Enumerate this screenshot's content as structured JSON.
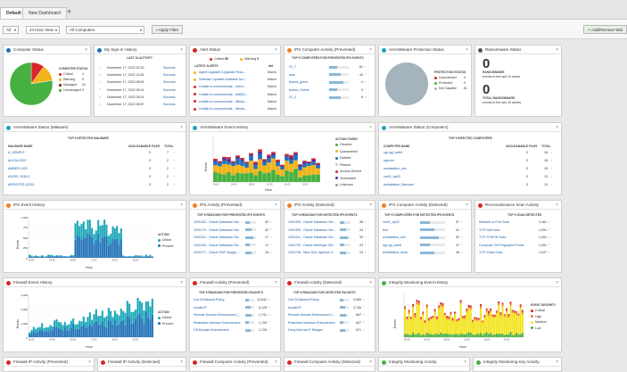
{
  "tabs": {
    "default": "Default",
    "new": "New Dashboard",
    "add": "+"
  },
  "toolbar": {
    "scope": "All",
    "range": "24 Hour View",
    "computers": "All Computers",
    "apply": "Apply Filter",
    "add_widget": "Add/Remove Wid"
  },
  "colors": {
    "critical": "#d9262a",
    "warning": "#f2b318",
    "managed": "#7a1414",
    "unmanaged": "#5bb34a",
    "ok": "#46b041",
    "teal": "#1aa7b8",
    "blue": "#2070b8"
  },
  "computer_status": {
    "title": "Computer Status",
    "label": "COMPUTER STATUS",
    "items": [
      {
        "name": "Critical",
        "value": "4"
      },
      {
        "name": "Warning",
        "value": "5"
      },
      {
        "name": "Managed",
        "value": "31"
      },
      {
        "name": "Unmanaged",
        "value": "0"
      }
    ],
    "pie": [
      4,
      5,
      31
    ]
  },
  "signin": {
    "title": "My Sign-in History",
    "label": "LAST 10 ACTIVITY",
    "rows": [
      {
        "date": "November 17, 2022 22:33",
        "status": "Success"
      },
      {
        "date": "November 17, 2022 11:06",
        "status": "Success"
      },
      {
        "date": "November 17, 2022 08:54",
        "status": "Success"
      },
      {
        "date": "November 17, 2022 05:14",
        "status": "Success"
      },
      {
        "date": "November 17, 2022 05:01",
        "status": "Success"
      },
      {
        "date": "November 17, 2022 05:57",
        "status": "Success"
      }
    ]
  },
  "alert_status": {
    "title": "Alert Status",
    "critical_label": "Critical",
    "critical_value": "80",
    "warning_label": "Warning",
    "warning_value": "0",
    "latest_label": "LATEST ALERTS",
    "col": "dat",
    "rows": [
      {
        "text": "Agent Upgrade (Upgrade Reco...",
        "when": "March"
      },
      {
        "text": "Software Updates Available for I...",
        "when": "March"
      },
      {
        "text": "Unable to communicate - direct...",
        "when": "March"
      },
      {
        "text": "Unable to communicate - fo6001...",
        "when": "March"
      },
      {
        "text": "Unable to communicate - Windo...",
        "when": "March"
      },
      {
        "text": "Unable to communicate - Windo...",
        "when": "March"
      }
    ]
  },
  "ips_activity_prevented": {
    "title": "IPS Computer Activity (Prevented)",
    "label": "TOP 5 COMPUTERS FOR PREVENTED IPS EVENTS",
    "rows": [
      {
        "name": "01_7",
        "value": "81"
      },
      {
        "name": "auto",
        "value": "44"
      },
      {
        "name": "fedora_green",
        "value": "4"
      },
      {
        "name": "fedora_Online",
        "value": "9"
      },
      {
        "name": "01_2",
        "value": "8"
      }
    ]
  },
  "amp_status": {
    "title": "Anti-Malware Protection Status",
    "label": "PROTECTION STATUS",
    "items": [
      {
        "name": "Unprotected",
        "value": "0"
      },
      {
        "name": "Protected",
        "value": "0"
      },
      {
        "name": "Not Capable",
        "value": "61"
      }
    ],
    "pie": [
      0,
      0,
      61
    ]
  },
  "ransomware": {
    "title": "Ransomware Status",
    "big1": "0",
    "label1": "RANSOMWARE",
    "text1": "events in the last 24 hours",
    "big2": "0",
    "label2": "TOTAL RANSOMWARE",
    "text2": "events in the last 15 weeks"
  },
  "am_malware": {
    "title": "Anti-Malware Status (Malware)",
    "label": "TOP 5 DETECTED MALWARE",
    "cols": [
      "MALWARE NAME",
      "UNCLEANABLE FILES",
      "TOTAL"
    ],
    "rows": [
      {
        "name": "A_NSWR.E",
        "unc": "0",
        "total": "7"
      },
      {
        "name": "ALICIA.2022",
        "unc": "0",
        "total": "2"
      },
      {
        "name": "AMBER.1422",
        "unc": "0",
        "total": "2"
      },
      {
        "name": "ANGEL.1036.3",
        "unc": "0",
        "total": "2"
      },
      {
        "name": "ARRIOTES.12320",
        "unc": "0",
        "total": "2"
      }
    ]
  },
  "am_event_history": {
    "title": "Anti-Malware Event History",
    "ylabel": "Events",
    "xlabel": "Hour",
    "legend_title": "ACTION TAKEN",
    "legend": [
      {
        "name": "Cleaned",
        "color": "#46b041"
      },
      {
        "name": "Quarantined",
        "color": "#f2b318"
      },
      {
        "name": "Deleted",
        "color": "#2070b8"
      },
      {
        "name": "Passed",
        "color": "#cccccc"
      },
      {
        "name": "Access Denied",
        "color": "#d9262a"
      },
      {
        "name": "Terminated",
        "color": "#5a2d8a"
      },
      {
        "name": "Unknown",
        "color": "#9a9a9a"
      }
    ]
  },
  "am_computers": {
    "title": "Anti-Malware Status (Computers)",
    "label": "TOP 5 INFECTED COMPUTERS",
    "cols": [
      "COMPUTER NAME",
      "UNCLEANABLE FILES",
      "TOTAL"
    ],
    "rows": [
      {
        "name": "ngi.ngi_ludhil",
        "unc": "0",
        "total": "16"
      },
      {
        "name": "ngicom",
        "unc": "0",
        "total": "18"
      },
      {
        "name": "workstation_win",
        "unc": "0",
        "total": "15"
      },
      {
        "name": "vm01_ap02",
        "unc": "0",
        "total": "13"
      },
      {
        "name": "workstation_Maxsam",
        "unc": "0",
        "total": "13"
      }
    ]
  },
  "ips_event_history": {
    "title": "IPS Event History",
    "ylabel": "Events",
    "xlabel": "Hour",
    "legend_title": "ACTION",
    "legend": [
      {
        "name": "Detect",
        "color": "#1aa7b8"
      },
      {
        "name": "Prevent",
        "color": "#2070b8"
      }
    ],
    "yticks": [
      "1,000",
      "750",
      "500",
      "250",
      "0"
    ]
  },
  "ips_activity": {
    "title": "IPS Activity (Prevented)",
    "label": "TOP 5 REASONS FOR PREVENTED IPS EVENTS",
    "rows": [
      {
        "name": "1000163 - Oracle Database Ser...",
        "value": "42"
      },
      {
        "name": "1000170 - Oracle Database Ser...",
        "value": "42"
      },
      {
        "name": "1000241 - Oracle Database Ser...",
        "value": "17"
      },
      {
        "name": "1000165 - Oracle Database Ser...",
        "value": "11"
      },
      {
        "name": "1000177 - Oracle SSH Spygrp ...",
        "value": "16"
      }
    ]
  },
  "ips_detected": {
    "title": "IPS Activity (Detected)",
    "label": "TOP 5 REASONS FOR DETECTED IPS EVENTS",
    "rows": [
      {
        "name": "1000428 - Oracle Database Ser...",
        "value": "36"
      },
      {
        "name": "1000400 - Oracle Database Ser...",
        "value": "34"
      },
      {
        "name": "1000431 - Oracle Database Ser...",
        "value": "33"
      },
      {
        "name": "1000725 - Oracle Weblogic SSI...",
        "value": "24"
      },
      {
        "name": "1002748 - Misc SQL Injection S...",
        "value": "24"
      }
    ]
  },
  "ips_comp_detected": {
    "title": "IPS Computer Activity (Detected)",
    "label": "TOP 5 COMPUTERS FOR DETECTED IPS EVENTS",
    "rows": [
      {
        "name": "vm01_ap02",
        "value": "57"
      },
      {
        "name": "test",
        "value": "51"
      },
      {
        "name": "workstation_win",
        "value": "52"
      },
      {
        "name": "ngi.ngi_ludhil",
        "value": "47"
      },
      {
        "name": "workstation_lamb",
        "value": "46"
      }
    ]
  },
  "recon": {
    "title": "Reconnaissance Scan Activity",
    "label": "TOP 5 SCAN DETECTED",
    "rows": [
      {
        "name": "Network or Port Scan",
        "value": "2,461"
      },
      {
        "name": "TCP Null Scan",
        "value": "1,051"
      },
      {
        "name": "TCP SYNFIN Scan",
        "value": "1,051"
      },
      {
        "name": "Computer OS Fingerprint Probe",
        "value": "1,051"
      },
      {
        "name": "TCP Xmas Scan",
        "value": "1,037"
      }
    ]
  },
  "fw_event_history": {
    "title": "Firewall Event History",
    "ylabel": "Events",
    "xlabel": "Hour",
    "legend_title": "ACTION",
    "legend": [
      {
        "name": "Detect",
        "color": "#1aa7b8"
      },
      {
        "name": "Prevent",
        "color": "#2070b8"
      }
    ],
    "yticks": [
      "3,000",
      "2,000",
      "1,000",
      "0"
    ]
  },
  "fw_prevented": {
    "title": "Firewall Activity (Prevented)",
    "label": "TOP 5 REASONS FOR PREVENTED PACKETS",
    "rows": [
      {
        "name": "Out Of Allowed Policy",
        "value": "13,632"
      },
      {
        "name": "Invalid IP",
        "value": "6,126"
      },
      {
        "name": "Remote Domain Enforcement (...",
        "value": "1,741"
      },
      {
        "name": "Restricted Interface Enforcement",
        "value": "1,726"
      },
      {
        "name": "Off Domain Enforcement",
        "value": "1,726"
      }
    ]
  },
  "fw_detected": {
    "title": "Firewall Activity (Detected)",
    "label": "TOP 5 REASONS FOR DETECTED PACKETS",
    "rows": [
      {
        "name": "Out Of Allowed Policy",
        "value": "4,969"
      },
      {
        "name": "Invalid IP",
        "value": "2,745"
      },
      {
        "name": "Remote Domain Enforcement (...",
        "value": "667"
      },
      {
        "name": "Restricted Interface Enforcement",
        "value": "637"
      },
      {
        "name": "Deny Internal IP Ranges",
        "value": "571"
      }
    ]
  },
  "im_event_history": {
    "title": "Integrity Monitoring Event History",
    "ylabel": "Events",
    "xlabel": "Hour",
    "legend_title": "EVENT SEVERITY",
    "legend": [
      {
        "name": "Critical",
        "color": "#d9262a"
      },
      {
        "name": "High",
        "color": "#f57f20"
      },
      {
        "name": "Medium",
        "color": "#f2e31a"
      },
      {
        "name": "Low",
        "color": "#46b041"
      }
    ]
  },
  "bottom_titles": [
    "Firewall IP Activity (Prevented)",
    "Firewall IP Activity (Detected)",
    "Firewall Computer Activity (Prevented)",
    "Firewall Computer Activity (Detected)",
    "Integrity Monitoring Activity",
    "Integrity Monitoring Key Activity"
  ],
  "x_hours": [
    "00:00",
    "02:00",
    "04:00",
    "06:00",
    "08:00",
    "10:00",
    "12:00",
    "14:00",
    "16:00",
    "18:00",
    "20:00",
    "22:00"
  ]
}
